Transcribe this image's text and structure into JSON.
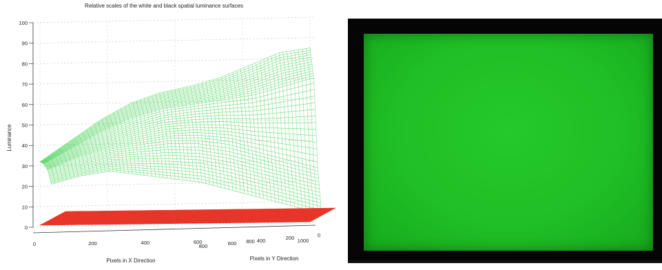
{
  "chart_data": {
    "type": "surface",
    "title": "Relative scales of the white and black spatial luminance surfaces",
    "zlabel": "Luminance",
    "xlabel": "Pixels in X Direction",
    "ylabel": "Pixels in Y Direction",
    "z_ticks": [
      "0",
      "10",
      "20",
      "30",
      "40",
      "50",
      "60",
      "70",
      "80",
      "90",
      "100"
    ],
    "x_ticks": [
      "0",
      "200",
      "400",
      "600",
      "800",
      "1000"
    ],
    "y_ticks": [
      "0",
      "200",
      "400",
      "600",
      "800"
    ],
    "zlim": [
      0,
      100
    ],
    "series": [
      {
        "name": "white",
        "color": "#2ecc40",
        "values": [
          [
            32,
            42,
            52,
            60,
            65,
            68,
            72,
            78,
            84,
            86
          ],
          [
            30,
            38,
            46,
            52,
            56,
            58,
            60,
            62,
            66,
            70
          ],
          [
            26,
            32,
            36,
            38,
            40,
            40,
            38,
            34,
            30,
            26
          ],
          [
            18,
            22,
            24,
            22,
            20,
            18,
            14,
            10,
            6,
            2
          ]
        ]
      },
      {
        "name": "black",
        "color": "#e8352a",
        "values": [
          [
            1,
            1,
            1,
            1,
            1,
            1,
            1,
            1,
            1,
            1
          ],
          [
            1,
            1,
            1,
            1,
            1,
            1,
            1,
            1,
            1,
            1
          ],
          [
            1,
            1,
            1,
            1,
            1,
            1,
            1,
            1,
            1,
            1
          ],
          [
            1,
            1,
            1,
            1,
            1,
            1,
            1,
            1,
            1,
            1
          ]
        ]
      }
    ],
    "grid": true
  },
  "photo": {
    "subject": "green-display-screen",
    "screen_color": "#1fbf25",
    "bezel_color": "#050505"
  }
}
